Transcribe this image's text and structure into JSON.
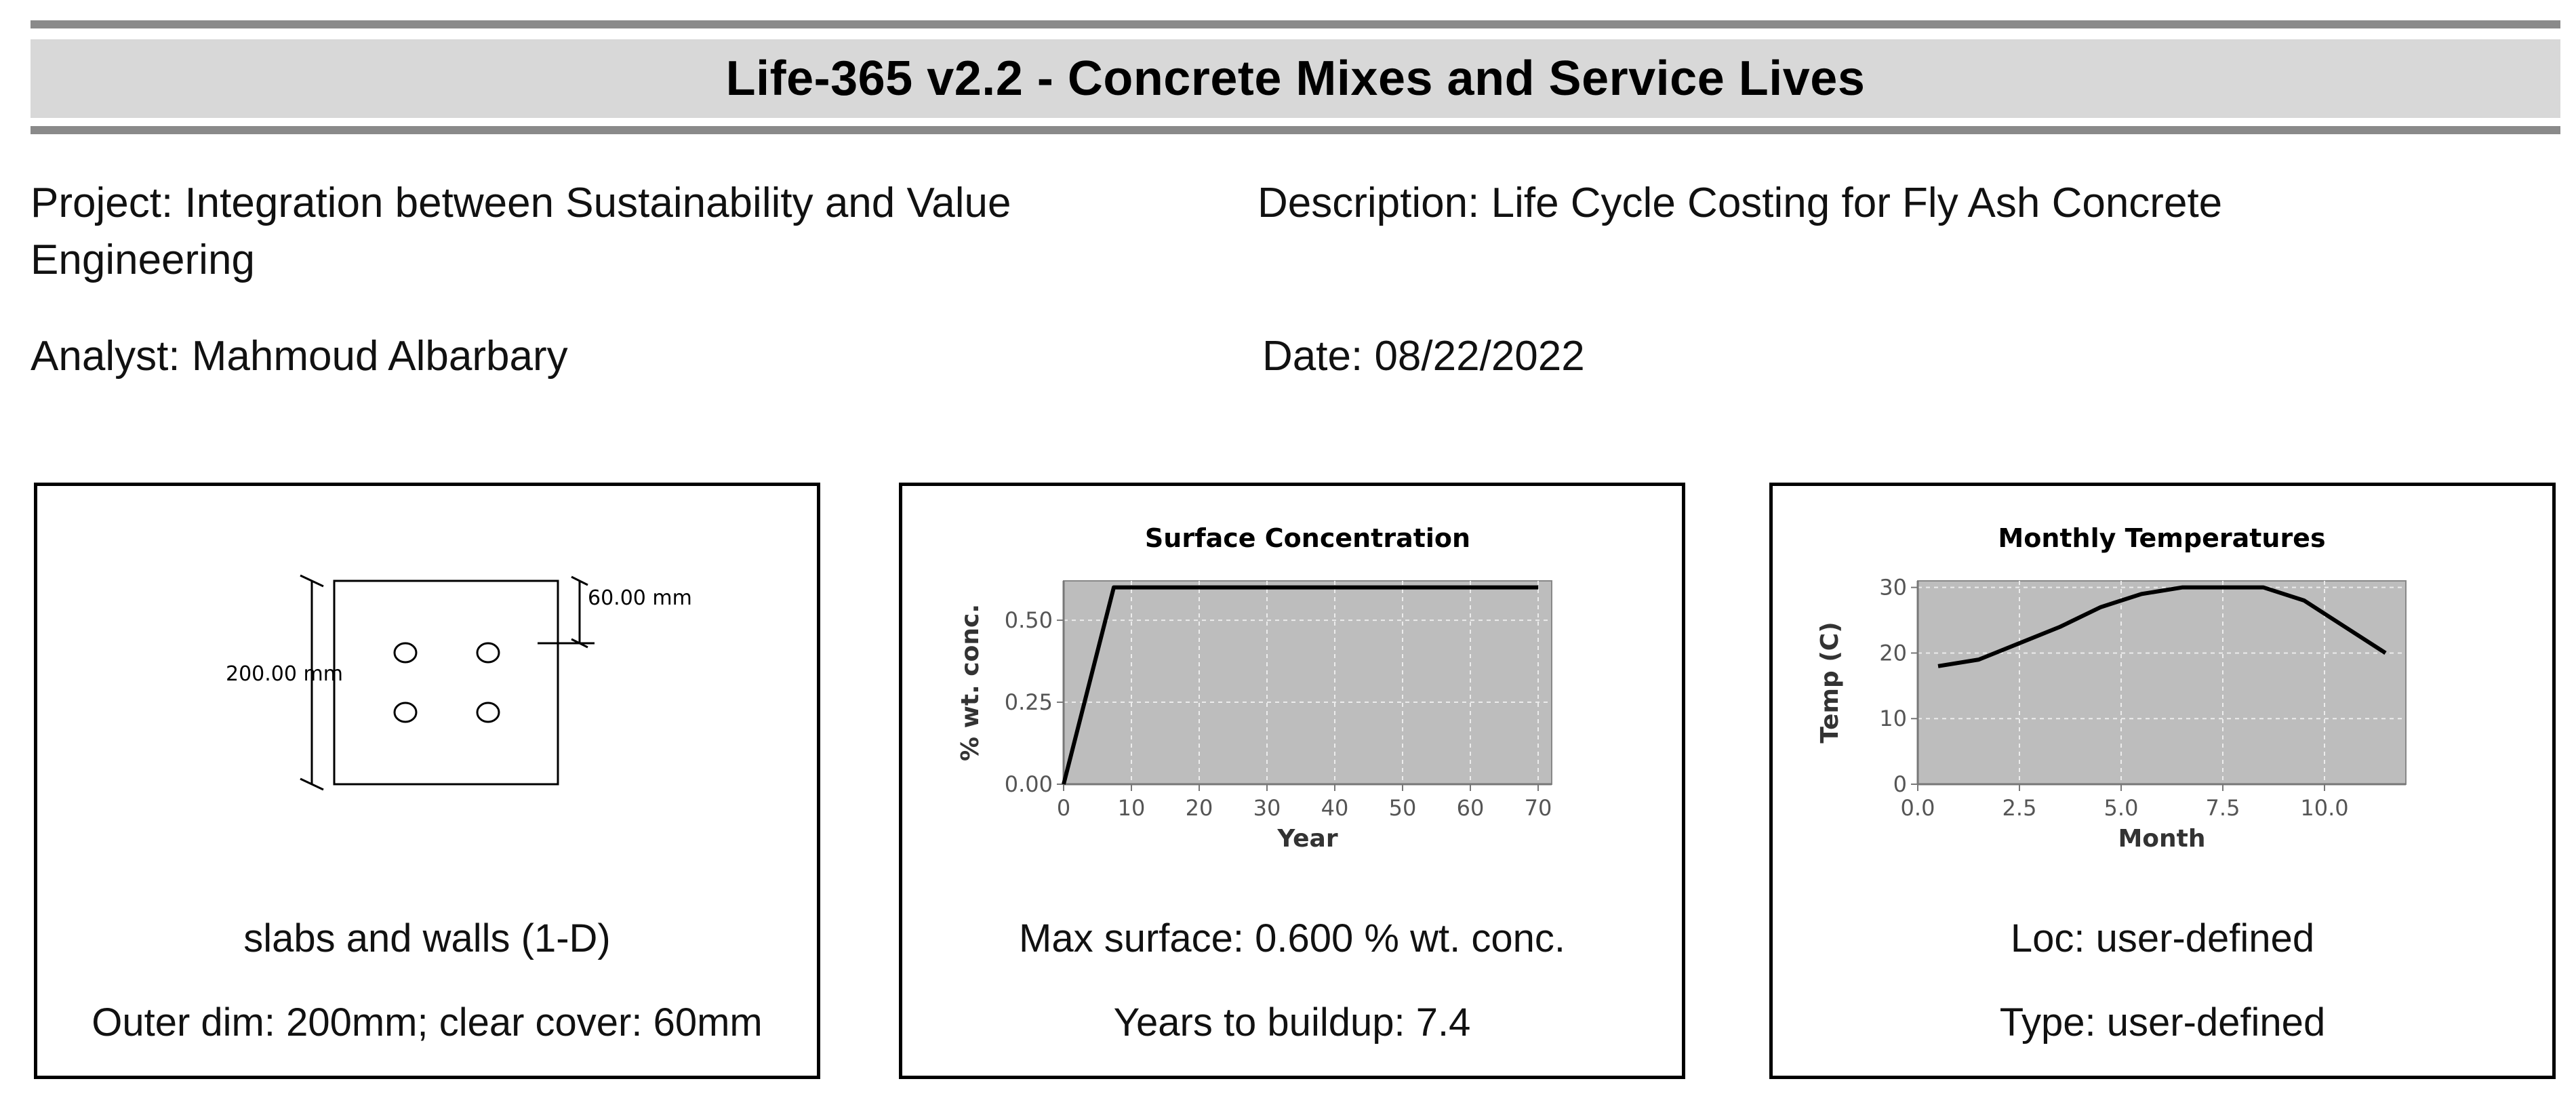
{
  "header": {
    "title": "Life-365 v2.2 - Concrete Mixes and Service Lives"
  },
  "project": {
    "label": "Project:",
    "value_line1": "Integration between Sustainability and Value",
    "value_line2": "Engineering"
  },
  "description": {
    "label": "Description:",
    "value": "Life Cycle Costing for Fly Ash Concrete"
  },
  "analyst": {
    "label": "Analyst:",
    "value": "Mahmoud Albarbary"
  },
  "date": {
    "label": "Date:",
    "value": "08/22/2022"
  },
  "geometry_panel": {
    "height_dim": "200.00 mm",
    "cover_dim": "60.00 mm",
    "caption1": "slabs and walls (1-D)",
    "caption2": "Outer dim: 200mm; clear cover: 60mm"
  },
  "chart_data": [
    {
      "type": "line",
      "title": "Surface Concentration",
      "xlabel": "Year",
      "ylabel": "% wt. conc.",
      "xlim": [
        0,
        72
      ],
      "ylim": [
        0,
        0.62
      ],
      "xticks": [
        0,
        10,
        20,
        30,
        40,
        50,
        60,
        70
      ],
      "xtick_labels": [
        "0",
        "10",
        "20",
        "30",
        "40",
        "50",
        "60",
        "70"
      ],
      "yticks": [
        0,
        0.25,
        0.5
      ],
      "ytick_labels": [
        "0.00",
        "0.25",
        "0.50"
      ],
      "x": [
        0,
        7.4,
        70
      ],
      "y": [
        0,
        0.6,
        0.6
      ],
      "grid": true,
      "plot_bg": "#bdbdbd"
    },
    {
      "type": "line",
      "title": "Monthly Temperatures",
      "xlabel": "Month",
      "ylabel": "Temp (C)",
      "xlim": [
        0,
        12
      ],
      "ylim": [
        0,
        31
      ],
      "xticks": [
        0,
        2.5,
        5,
        7.5,
        10
      ],
      "xtick_labels": [
        "0.0",
        "2.5",
        "5.0",
        "7.5",
        "10.0"
      ],
      "yticks": [
        0,
        10,
        20,
        30
      ],
      "ytick_labels": [
        "0",
        "10",
        "20",
        "30"
      ],
      "x": [
        0.5,
        1.5,
        2.5,
        3.5,
        4.5,
        5.5,
        6.5,
        7.5,
        8.5,
        9.5,
        10.5,
        11.5
      ],
      "y": [
        18,
        19,
        21.5,
        24,
        27,
        29,
        30,
        30,
        30,
        28,
        24,
        20
      ],
      "grid": true,
      "plot_bg": "#bdbdbd"
    }
  ],
  "surface_panel": {
    "caption1": "Max surface: 0.600 % wt. conc.",
    "caption2": "Years to buildup: 7.4"
  },
  "temp_panel": {
    "caption1": "Loc: user-defined",
    "caption2": "Type: user-defined"
  }
}
